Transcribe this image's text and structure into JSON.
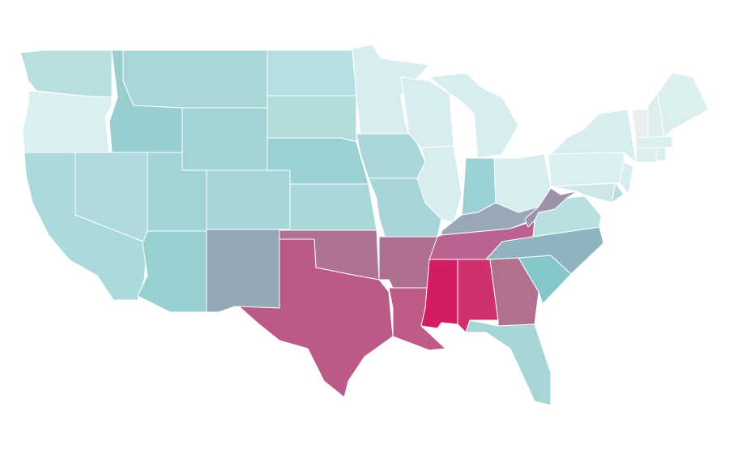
{
  "map": {
    "fills": [
      "#b8dfe0",
      "#dbeef0",
      "#aadadb",
      "#98ced0",
      "#b0dadb",
      "#a8d7d8",
      "#a3d4d5",
      "#a3d4d5",
      "#98cfd1",
      "#a6d6d7",
      "#95a8b5",
      "#b5dfe0",
      "#b3dcdd",
      "#9cd1d3",
      "#a8d7d8",
      "#ad7294",
      "#bb5a88",
      "#d8edef",
      "#aad8d9",
      "#a6d6d7",
      "#af6f93",
      "#bf5b88",
      "#d8edef",
      "#d8edef",
      "#d8edef",
      "#9cd1d3",
      "#d8edef",
      "#98a8b7",
      "#bb6290",
      "#d41c63",
      "#d03070",
      "#b2708f",
      "#a8d6d7",
      "#86c7c9",
      "#8fb3bf",
      "#b8e0e1",
      "#9c92aa",
      "#dbeff1",
      "#d8edef",
      "#cde7ea",
      "#b8dfe0",
      "#d8edef",
      "#e9eff1",
      "#dcefef",
      "#dcefef",
      "#dcefef",
      "#dcefef",
      "#dcefef"
    ]
  }
}
